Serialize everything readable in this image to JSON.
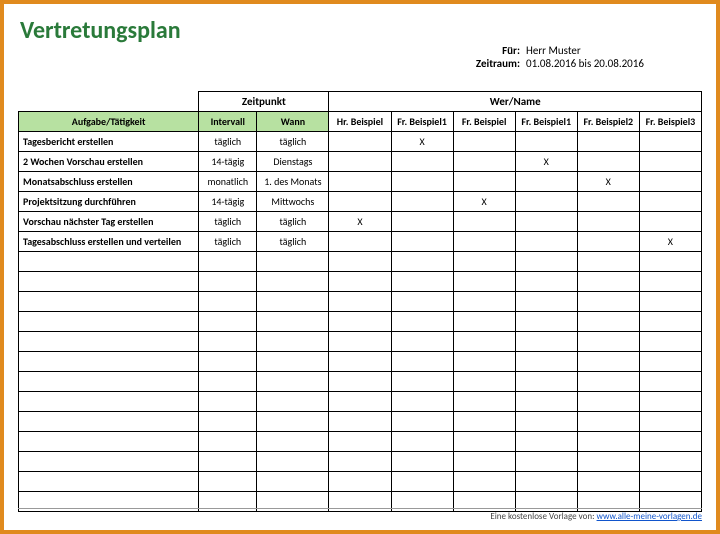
{
  "title": "Vertretungsplan",
  "meta": {
    "for_label": "Für:",
    "for_value": "Herr Muster",
    "period_label": "Zeitraum:",
    "period_value": "01.08.2016 bis 20.08.2016"
  },
  "group_headers": {
    "zeitpunkt": "Zeitpunkt",
    "wer": "Wer/Name"
  },
  "columns": {
    "task": "Aufgabe/Tätigkeit",
    "interval": "Intervall",
    "when": "Wann",
    "people": [
      "Hr. Beispiel",
      "Fr. Beispiel1",
      "Fr. Beispiel",
      "Fr. Beispiel1",
      "Fr. Beispiel2",
      "Fr. Beispiel3"
    ]
  },
  "rows": [
    {
      "task": "Tagesbericht erstellen",
      "interval": "täglich",
      "when": "täglich",
      "marks": [
        "",
        "X",
        "",
        "",
        "",
        ""
      ]
    },
    {
      "task": "2 Wochen Vorschau erstellen",
      "interval": "14-tägig",
      "when": "Dienstags",
      "marks": [
        "",
        "",
        "",
        "X",
        "",
        ""
      ]
    },
    {
      "task": "Monatsabschluss erstellen",
      "interval": "monatlich",
      "when": "1. des Monats",
      "marks": [
        "",
        "",
        "",
        "",
        "X",
        ""
      ]
    },
    {
      "task": "Projektsitzung durchführen",
      "interval": "14-tägig",
      "when": "Mittwochs",
      "marks": [
        "",
        "",
        "X",
        "",
        "",
        ""
      ]
    },
    {
      "task": "Vorschau nächster Tag erstellen",
      "interval": "täglich",
      "when": "täglich",
      "marks": [
        "X",
        "",
        "",
        "",
        "",
        ""
      ]
    },
    {
      "task": "Tagesabschluss erstellen und verteilen",
      "interval": "täglich",
      "when": "täglich",
      "marks": [
        "",
        "",
        "",
        "",
        "",
        "X"
      ]
    }
  ],
  "empty_row_count": 13,
  "footer": {
    "credit_text": "Eine kostenlose Vorlage von:",
    "credit_link": "www.alle-meine-vorlagen.de"
  },
  "style": {
    "frame_border_color": "#e08a1e",
    "title_color": "#2a7a3a",
    "header_fill": "#b7e1a1",
    "grid_color": "#000000",
    "mark_symbol": "X"
  }
}
